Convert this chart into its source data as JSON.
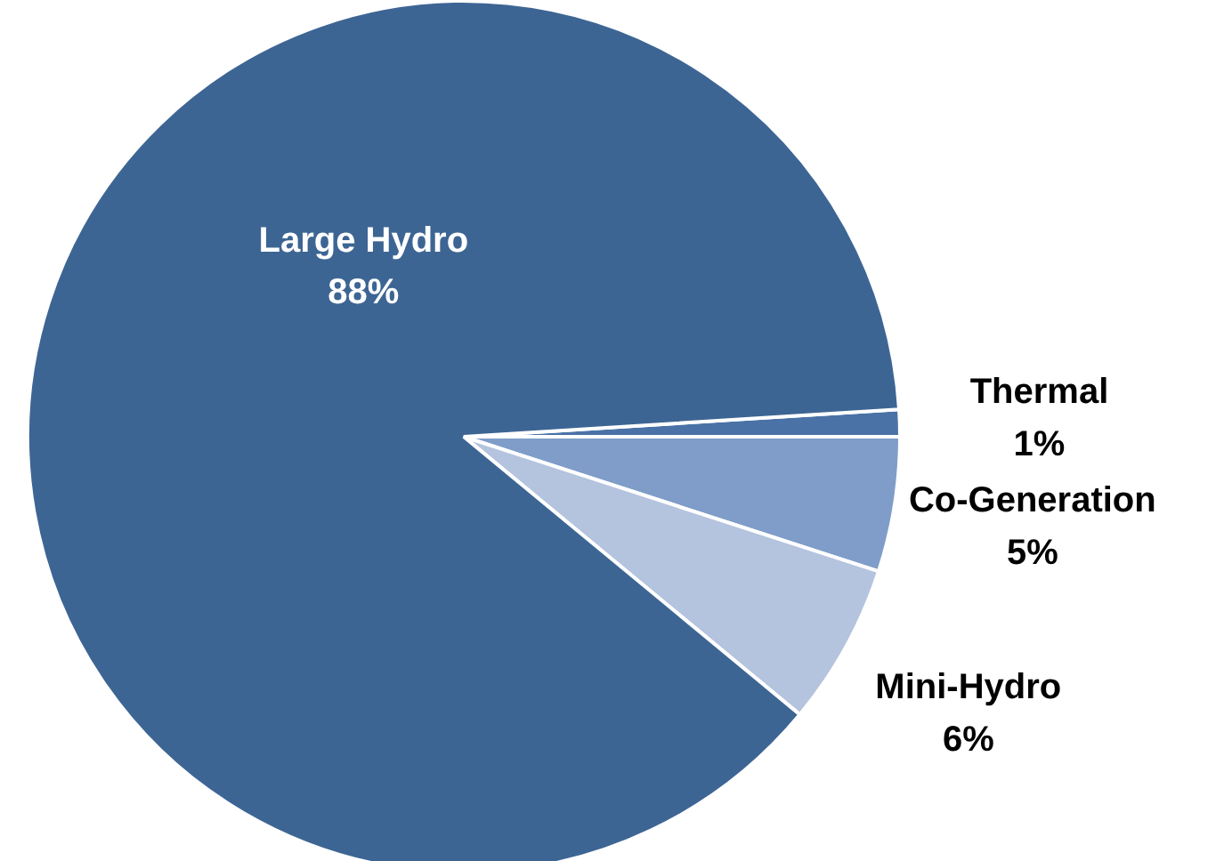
{
  "chart_data": {
    "type": "pie",
    "categories": [
      "Thermal",
      "Co-Generation",
      "Mini-Hydro",
      "Large Hydro"
    ],
    "values": [
      1,
      5,
      6,
      88
    ],
    "colors": [
      "#4a72a6",
      "#7f9dc8",
      "#b4c3de",
      "#3d6594"
    ],
    "value_labels": [
      "1%",
      "5%",
      "6%",
      "88%"
    ]
  }
}
